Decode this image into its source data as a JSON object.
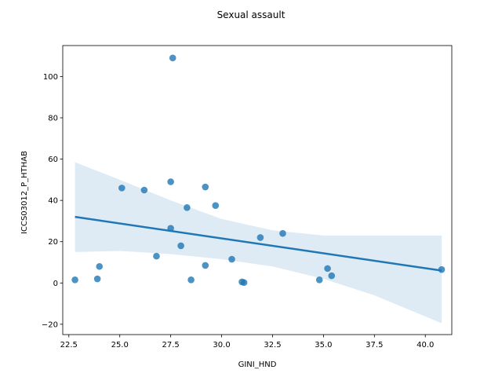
{
  "chart_data": {
    "type": "scatter",
    "title": "Sexual assault",
    "xlabel": "GINI_HND",
    "ylabel": "ICCS03012_P_HTHAB",
    "xlim": [
      22.2,
      41.3
    ],
    "ylim": [
      -25,
      115
    ],
    "x_ticks": [
      22.5,
      25.0,
      27.5,
      30.0,
      32.5,
      35.0,
      37.5,
      40.0
    ],
    "x_tick_labels": [
      "22.5",
      "25.0",
      "27.5",
      "30.0",
      "32.5",
      "35.0",
      "37.5",
      "40.0"
    ],
    "y_ticks": [
      -20,
      0,
      20,
      40,
      60,
      80,
      100
    ],
    "y_tick_labels": [
      "−20",
      "0",
      "20",
      "40",
      "60",
      "80",
      "100"
    ],
    "grid": false,
    "legend": "none",
    "colors": {
      "points": "#1f77b4",
      "regression_line": "#1f77b4",
      "confidence_band": "#1f77b4"
    },
    "series": [
      {
        "points": [
          {
            "x": 22.8,
            "y": 1.5
          },
          {
            "x": 23.9,
            "y": 2.0
          },
          {
            "x": 24.0,
            "y": 8.0
          },
          {
            "x": 25.1,
            "y": 46.0
          },
          {
            "x": 26.2,
            "y": 45.0
          },
          {
            "x": 26.8,
            "y": 13.0
          },
          {
            "x": 27.5,
            "y": 49.0
          },
          {
            "x": 27.5,
            "y": 26.5
          },
          {
            "x": 27.6,
            "y": 109.0
          },
          {
            "x": 28.0,
            "y": 18.0
          },
          {
            "x": 28.3,
            "y": 36.5
          },
          {
            "x": 28.5,
            "y": 1.5
          },
          {
            "x": 29.2,
            "y": 46.5
          },
          {
            "x": 29.2,
            "y": 8.5
          },
          {
            "x": 29.7,
            "y": 37.5
          },
          {
            "x": 30.5,
            "y": 11.5
          },
          {
            "x": 31.0,
            "y": 0.5
          },
          {
            "x": 31.1,
            "y": 0.2
          },
          {
            "x": 31.9,
            "y": 22.0
          },
          {
            "x": 33.0,
            "y": 24.0
          },
          {
            "x": 34.8,
            "y": 1.5
          },
          {
            "x": 35.2,
            "y": 7.0
          },
          {
            "x": 35.4,
            "y": 3.5
          },
          {
            "x": 40.8,
            "y": 6.5
          }
        ]
      }
    ],
    "regression": {
      "x_start": 22.8,
      "y_start": 32.0,
      "x_end": 40.8,
      "y_end": 6.0
    },
    "confidence_band": {
      "x": [
        22.8,
        25.0,
        27.5,
        30.0,
        32.5,
        35.0,
        37.5,
        40.8
      ],
      "upper": [
        58.5,
        50.0,
        40.0,
        31.0,
        25.5,
        23.0,
        23.0,
        23.0
      ],
      "lower": [
        15.0,
        15.5,
        14.0,
        11.5,
        8.0,
        2.0,
        -6.0,
        -19.5
      ]
    }
  }
}
